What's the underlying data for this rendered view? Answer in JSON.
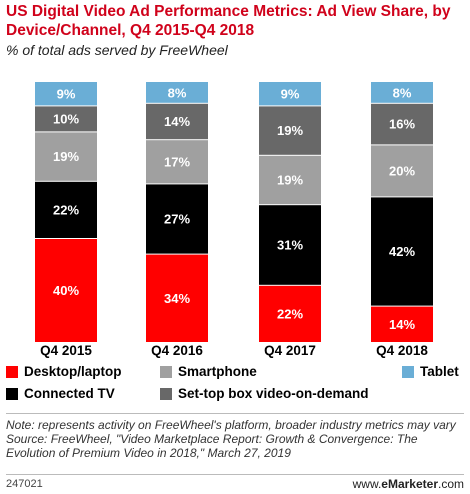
{
  "title": "US Digital Video Ad Performance Metrics: Ad View Share, by Device/Channel, Q4 2015-Q4 2018",
  "subtitle": "% of total ads served by FreeWheel",
  "chart_data": {
    "type": "bar",
    "stacked": true,
    "categories": [
      "Q4 2015",
      "Q4 2016",
      "Q4 2017",
      "Q4 2018"
    ],
    "series": [
      {
        "name": "Desktop/laptop",
        "color": "#ff0000",
        "values": [
          40,
          34,
          22,
          14
        ]
      },
      {
        "name": "Connected TV",
        "color": "#000000",
        "values": [
          22,
          27,
          31,
          42
        ]
      },
      {
        "name": "Smartphone",
        "color": "#a0a0a0",
        "values": [
          19,
          17,
          19,
          20
        ]
      },
      {
        "name": "Set-top box video-on-demand",
        "color": "#686868",
        "values": [
          10,
          14,
          19,
          16
        ]
      },
      {
        "name": "Tablet",
        "color": "#6aaed6",
        "values": [
          9,
          8,
          9,
          8
        ]
      }
    ],
    "value_suffix": "%",
    "ylim": [
      0,
      100
    ],
    "grid": false,
    "legend_position": "bottom"
  },
  "notes": {
    "note": "Note: represents activity on FreeWheel's platform, broader industry metrics may vary",
    "source": "Source: FreeWheel, \"Video Marketplace Report: Growth & Convergence: The Evolution of Premium Video in 2018,\" March 27, 2019"
  },
  "footer": {
    "chart_id": "247021",
    "brand_prefix": "www.",
    "brand_name": "eMarketer",
    "brand_suffix": ".com"
  }
}
